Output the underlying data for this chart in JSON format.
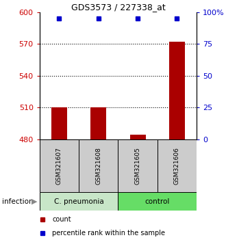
{
  "title": "GDS3573 / 227338_at",
  "samples": [
    "GSM321607",
    "GSM321608",
    "GSM321605",
    "GSM321606"
  ],
  "counts": [
    510,
    510,
    484,
    572
  ],
  "percentile_ranks": [
    95,
    95,
    95,
    95
  ],
  "groups": [
    "C. pneumonia",
    "C. pneumonia",
    "control",
    "control"
  ],
  "group_labels": [
    "C. pneumonia",
    "control"
  ],
  "group_colors": [
    "#c8e6c8",
    "#66dd66"
  ],
  "bar_color": "#aa0000",
  "dot_color": "#0000cc",
  "ylim_left": [
    480,
    600
  ],
  "yticks_left": [
    480,
    510,
    540,
    570,
    600
  ],
  "ylim_right": [
    0,
    100
  ],
  "yticks_right": [
    0,
    25,
    50,
    75,
    100
  ],
  "ytick_labels_right": [
    "0",
    "25",
    "50",
    "75",
    "100%"
  ],
  "sample_box_color": "#cccccc",
  "left_axis_color": "#cc0000",
  "right_axis_color": "#0000cc",
  "legend_count_label": "count",
  "legend_pct_label": "percentile rank within the sample",
  "infection_label": "infection",
  "dotted_lines": [
    510,
    540,
    570
  ]
}
